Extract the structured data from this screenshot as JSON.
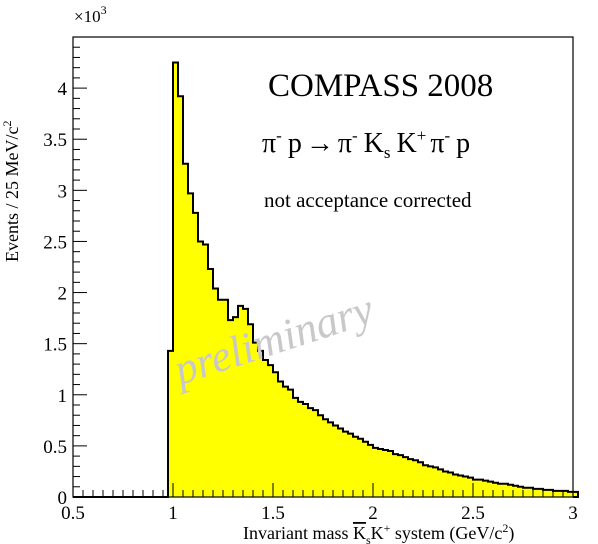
{
  "chart_data": {
    "type": "histogram",
    "title": "COMPASS 2008",
    "reaction": {
      "pi": "π",
      "minus": "-",
      "p": "p",
      "arrow": "→",
      "K": "K",
      "s": "s",
      "plus": "+"
    },
    "note": "not acceptance corrected",
    "watermark": "preliminary",
    "ylabel": "Events / 25 MeV/c",
    "ylabel_sup": "2",
    "y_multiplier": "×10",
    "y_multiplier_exp": "3",
    "xlabel_parts": {
      "pre": "Invariant mass ",
      "kbar": "K",
      "kbar_sub": "s",
      "k": "K",
      "k_sup": "+",
      "post": " system (GeV/c",
      "post_sup": "2",
      "close": ")"
    },
    "xlim": [
      0.5,
      3.0
    ],
    "ylim": [
      0,
      4.5
    ],
    "x_ticks": [
      0.5,
      1,
      1.5,
      2,
      2.5,
      3
    ],
    "x_tick_labels": [
      "0.5",
      "1",
      "1.5",
      "2",
      "2.5",
      "3"
    ],
    "y_ticks": [
      0,
      0.5,
      1,
      1.5,
      2,
      2.5,
      3,
      3.5,
      4
    ],
    "y_tick_labels": [
      "0",
      "0.5",
      "1",
      "1.5",
      "2",
      "2.5",
      "3",
      "3.5",
      "4"
    ],
    "bin_width": 0.025,
    "bin_start": 0.975,
    "fill_color": "#ffff00",
    "line_color": "#000000",
    "watermark_color": "#c8c8c8",
    "values": [
      1.43,
      4.25,
      3.92,
      3.26,
      2.97,
      2.78,
      2.5,
      2.47,
      2.23,
      2.04,
      1.93,
      1.93,
      1.73,
      1.76,
      1.87,
      1.84,
      1.69,
      1.51,
      1.43,
      1.34,
      1.29,
      1.22,
      1.13,
      1.08,
      1.05,
      0.97,
      0.93,
      0.91,
      0.87,
      0.85,
      0.8,
      0.76,
      0.73,
      0.7,
      0.67,
      0.64,
      0.62,
      0.59,
      0.57,
      0.54,
      0.51,
      0.48,
      0.47,
      0.46,
      0.45,
      0.42,
      0.41,
      0.39,
      0.37,
      0.36,
      0.34,
      0.31,
      0.3,
      0.29,
      0.27,
      0.25,
      0.24,
      0.22,
      0.21,
      0.2,
      0.19,
      0.17,
      0.17,
      0.16,
      0.15,
      0.14,
      0.13,
      0.13,
      0.12,
      0.11,
      0.1,
      0.09,
      0.09,
      0.08,
      0.08,
      0.07,
      0.07,
      0.06,
      0.06,
      0.06,
      0.05,
      0.05
    ]
  }
}
